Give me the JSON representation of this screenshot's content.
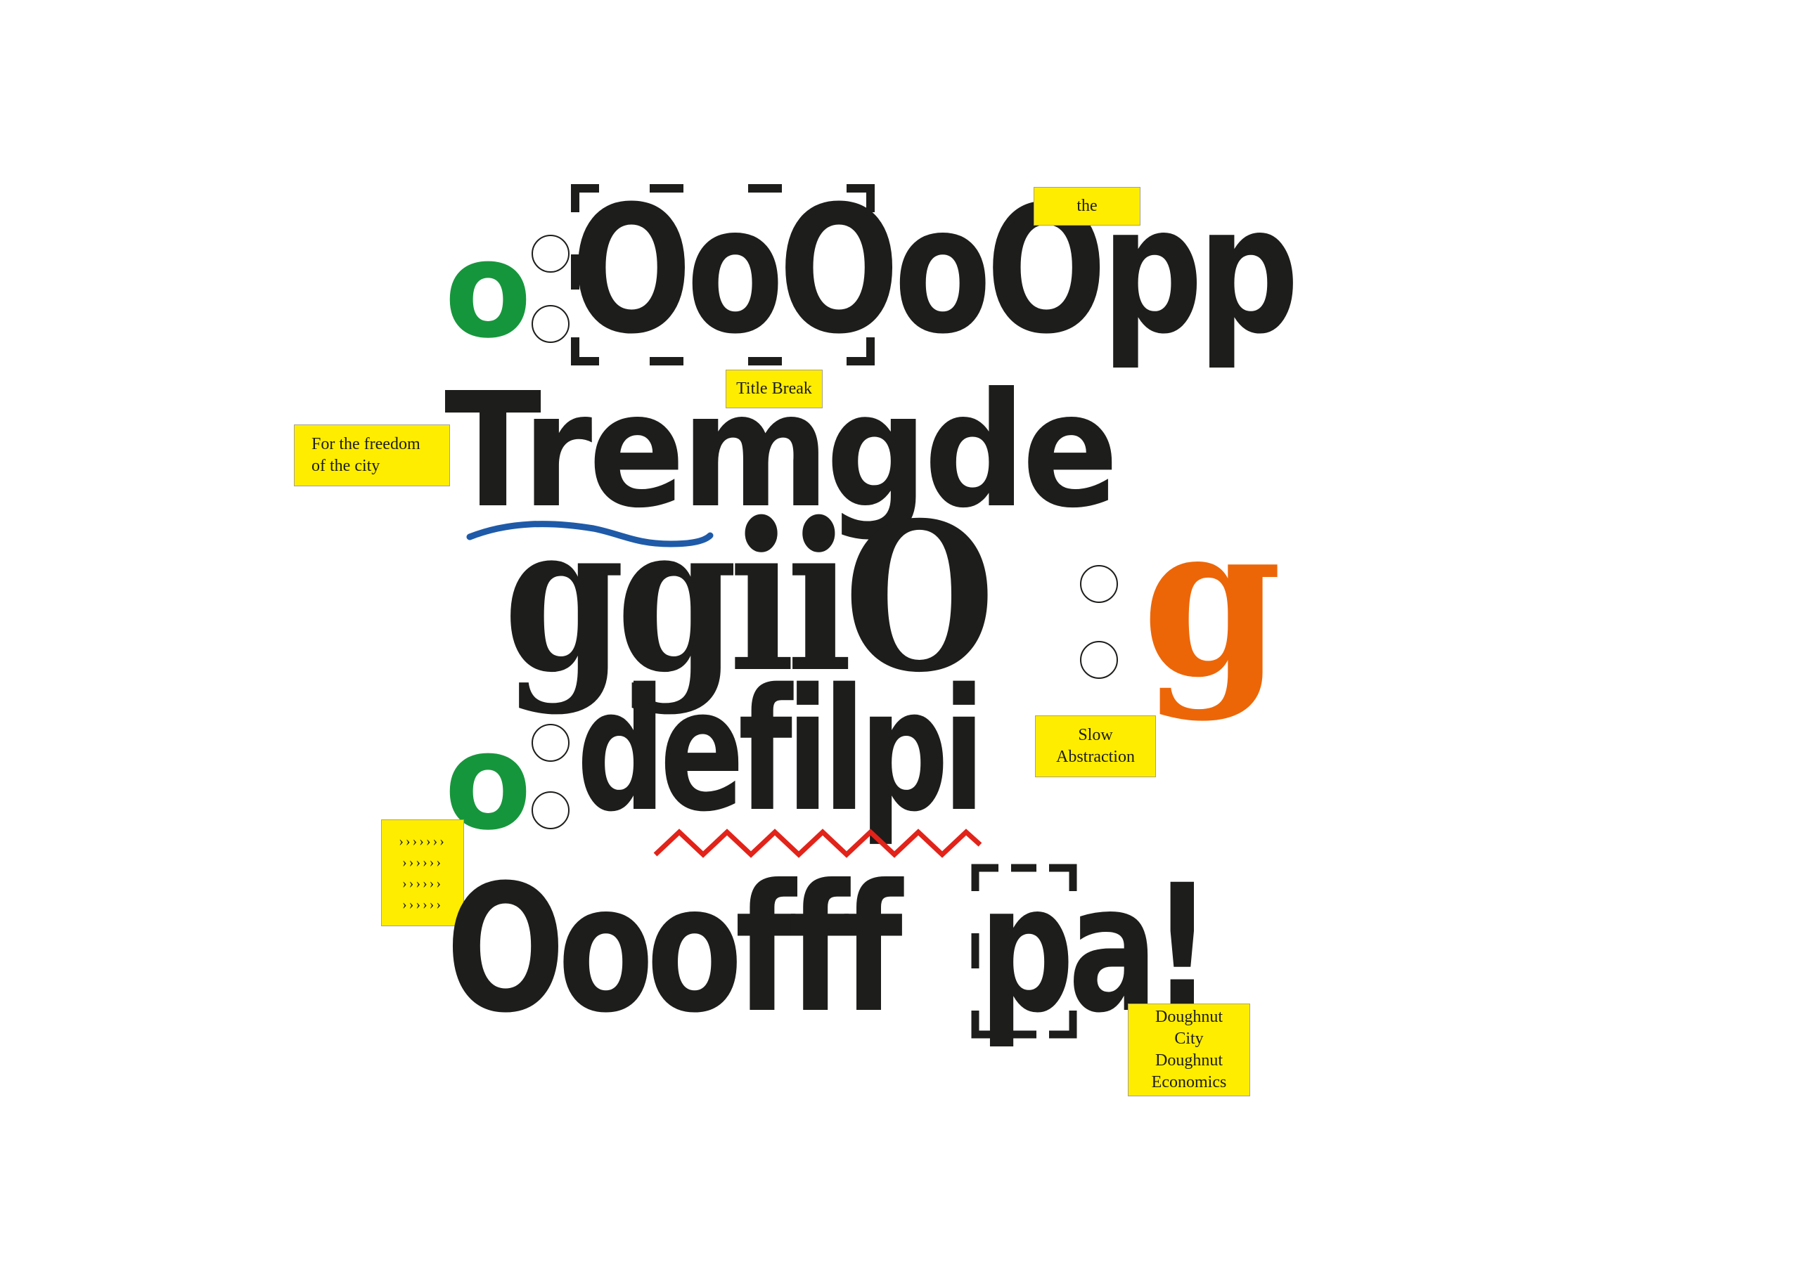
{
  "colors": {
    "ink": "#1d1d1b",
    "green": "#16963c",
    "orange": "#ec6608",
    "yellow": "#ffed00",
    "blue": "#1e5aa8",
    "red": "#e2231a"
  },
  "rows": {
    "row1_green": "o",
    "row1_main": "OoOoOpp",
    "row2_main": "Tremgde",
    "row3_main": "ggiiO",
    "row3_orange": "g",
    "row4_green": "o",
    "row4_main": "defilpi",
    "row5_main": "Ooofff",
    "row5_boxed": "pa!"
  },
  "notes": {
    "the": "the",
    "title_break": "Title Break",
    "freedom_line1": "For the freedom",
    "freedom_line2": "of the city",
    "slow_line1": "Slow",
    "slow_line2": "Abstraction",
    "quote_marks": [
      "›››››››",
      "››››››",
      "››››››",
      "››››››"
    ],
    "doughnut_line1": "Doughnut",
    "doughnut_line2": "City",
    "doughnut_line3": "Doughnut",
    "doughnut_line4": "Economics"
  },
  "decorations": {
    "top-frame-icon": "dashed-corner-frame",
    "bottom-frame-icon": "dashed-corner-frame",
    "blue-underline-icon": "wavy-underline",
    "red-zigzag-icon": "zigzag-underline",
    "circle-icons": "outlined-circles"
  }
}
